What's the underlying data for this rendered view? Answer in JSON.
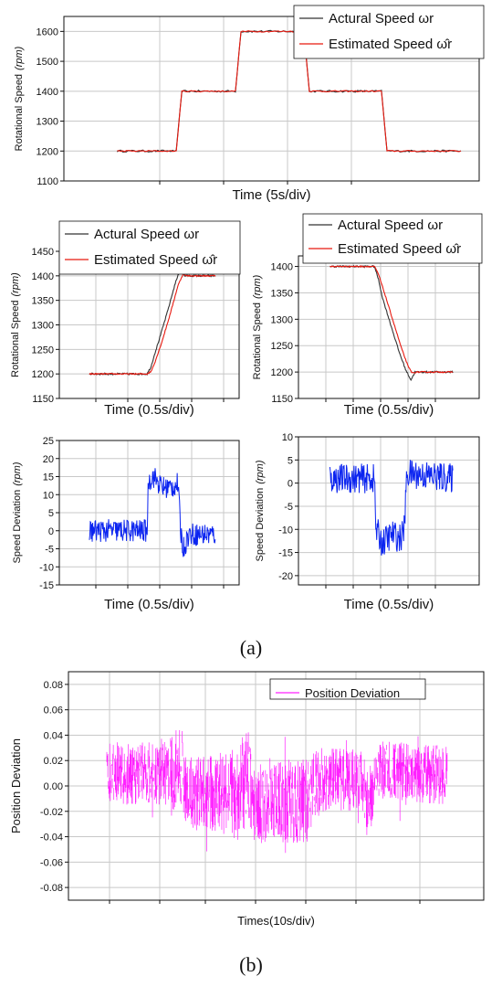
{
  "panel_labels": {
    "a": "(a)",
    "b": "(b)"
  },
  "chart_data": [
    {
      "id": "speed-full",
      "type": "line",
      "xlabel": "Time (5s/div)",
      "ylabel": "Rotational Speed",
      "ylabel_unit": "(rpm)",
      "ylim": [
        1100,
        1650
      ],
      "yticks": [
        1100,
        1200,
        1300,
        1400,
        1500,
        1600
      ],
      "xlim": [
        0,
        10
      ],
      "x_divisions": 8,
      "grid": true,
      "legend_position": "top-right",
      "series": [
        {
          "name": "Actural Speed ωr",
          "color": "#333333",
          "role": "actual",
          "x": [
            0.7,
            2.3,
            2.45,
            3.9,
            4.05,
            5.75,
            5.9,
            7.85,
            8.0,
            10.0
          ],
          "y": [
            1200,
            1200,
            1400,
            1400,
            1600,
            1600,
            1400,
            1400,
            1200,
            1200
          ]
        },
        {
          "name": "Estimated Speed ω̂r",
          "color": "#e8190f",
          "role": "estimated",
          "x": [
            0.7,
            2.3,
            2.45,
            3.9,
            4.05,
            5.75,
            5.9,
            7.85,
            8.0,
            10.0
          ],
          "y": [
            1200,
            1200,
            1400,
            1400,
            1600,
            1600,
            1400,
            1400,
            1200,
            1200
          ]
        }
      ]
    },
    {
      "id": "speed-rise",
      "type": "line",
      "xlabel": "Time (0.5s/div)",
      "ylabel": "Rotational Speed",
      "ylabel_unit": "(rpm)",
      "ylim": [
        1150,
        1450
      ],
      "yticks": [
        1150,
        1200,
        1250,
        1300,
        1350,
        1400,
        1450
      ],
      "xlim": [
        0,
        10
      ],
      "x_divisions": 8,
      "grid": true,
      "legend_position": "top",
      "series": [
        {
          "name": "Actural Speed ωr",
          "color": "#333333",
          "role": "actual",
          "x": [
            0.2,
            4.5,
            4.8,
            5.0,
            5.4,
            6.0,
            6.6,
            7.0,
            7.3,
            9.6
          ],
          "y": [
            1200,
            1200,
            1215,
            1235,
            1270,
            1325,
            1385,
            1415,
            1400,
            1400
          ]
        },
        {
          "name": "Estimated Speed ω̂r",
          "color": "#e8190f",
          "role": "estimated",
          "x": [
            0.2,
            4.5,
            4.8,
            5.1,
            5.6,
            6.2,
            6.8,
            7.2,
            7.4,
            9.6
          ],
          "y": [
            1200,
            1200,
            1205,
            1225,
            1265,
            1320,
            1380,
            1405,
            1400,
            1400
          ]
        }
      ]
    },
    {
      "id": "speed-fall",
      "type": "line",
      "xlabel": "Time (0.5s/div)",
      "ylabel": "Rotational Speed",
      "ylabel_unit": "(rpm)",
      "ylim": [
        1150,
        1420
      ],
      "yticks": [
        1150,
        1200,
        1250,
        1300,
        1350,
        1400
      ],
      "xlim": [
        0,
        10
      ],
      "x_divisions": 7,
      "grid": true,
      "legend_position": "top",
      "series": [
        {
          "name": "Actural Speed ωr",
          "color": "#333333",
          "role": "actual",
          "x": [
            0.3,
            3.6,
            3.9,
            4.2,
            4.8,
            5.4,
            5.9,
            6.3,
            6.6,
            9.4
          ],
          "y": [
            1400,
            1400,
            1375,
            1340,
            1290,
            1240,
            1205,
            1185,
            1200,
            1200
          ]
        },
        {
          "name": "Estimated Speed ω̂r",
          "color": "#e8190f",
          "role": "estimated",
          "x": [
            0.3,
            3.6,
            3.9,
            4.4,
            5.0,
            5.6,
            6.1,
            6.4,
            6.7,
            9.4
          ],
          "y": [
            1400,
            1400,
            1385,
            1345,
            1295,
            1245,
            1210,
            1198,
            1200,
            1200
          ]
        }
      ]
    },
    {
      "id": "deviation-rise",
      "type": "line",
      "xlabel": "Time (0.5s/div)",
      "ylabel": "Speed Deviation",
      "ylabel_unit": "(rpm)",
      "ylim": [
        -15,
        25
      ],
      "yticks": [
        -15,
        -10,
        -5,
        0,
        5,
        10,
        15,
        20,
        25
      ],
      "xlim": [
        0,
        10
      ],
      "x_divisions": 8,
      "grid": true,
      "series": [
        {
          "name": "",
          "color": "#0b24f0",
          "x": [
            0.2,
            4.5,
            4.6,
            5.0,
            5.6,
            6.3,
            6.8,
            7.0,
            7.2,
            7.6,
            9.6
          ],
          "y": [
            0,
            0,
            14,
            15,
            12,
            12,
            13,
            0,
            -5,
            -1,
            -1
          ]
        }
      ]
    },
    {
      "id": "deviation-fall",
      "type": "line",
      "xlabel": "Time (0.5s/div)",
      "ylabel": "Speed Deviation",
      "ylabel_unit": "(rpm)",
      "ylim": [
        -22,
        10
      ],
      "yticks": [
        -20,
        -15,
        -10,
        -5,
        0,
        5,
        10
      ],
      "xlim": [
        0,
        10
      ],
      "x_divisions": 7,
      "grid": true,
      "series": [
        {
          "name": "",
          "color": "#0b24f0",
          "x": [
            0.3,
            3.6,
            3.7,
            4.2,
            4.9,
            5.5,
            5.8,
            6.0,
            6.5,
            9.4
          ],
          "y": [
            1,
            1,
            -10,
            -13,
            -11,
            -12,
            -10,
            2,
            2,
            1
          ]
        }
      ]
    },
    {
      "id": "position-deviation",
      "type": "line",
      "xlabel": "Times(10s/div)",
      "ylabel": "Position Deviation",
      "ylim": [
        -0.09,
        0.09
      ],
      "yticks": [
        -0.08,
        -0.06,
        -0.04,
        -0.02,
        0.0,
        0.02,
        0.04,
        0.06,
        0.08
      ],
      "ytick_labels": [
        "-0.08",
        "-0.06",
        "-0.04",
        "-0.02",
        "0.00",
        "0.02",
        "0.04",
        "0.06",
        "0.08"
      ],
      "xlim": [
        0,
        10
      ],
      "x_divisions": 8,
      "grid": true,
      "legend_position": "top-right",
      "series": [
        {
          "name": "Position Deviation",
          "color": "#ff22ff",
          "envelope_x": [
            0.0,
            1.5,
            2.2,
            2.4,
            3.5,
            4.2,
            4.3,
            5.7,
            5.9,
            6.3,
            7.5,
            7.7,
            7.9,
            10.0
          ],
          "envelope_upper": [
            0.035,
            0.035,
            0.05,
            0.025,
            0.025,
            0.045,
            0.025,
            0.02,
            0.025,
            0.03,
            0.03,
            0.005,
            0.035,
            0.035
          ],
          "envelope_lower": [
            -0.015,
            -0.015,
            -0.02,
            -0.035,
            -0.04,
            -0.045,
            -0.045,
            -0.045,
            -0.05,
            -0.02,
            -0.02,
            -0.05,
            -0.01,
            -0.015
          ]
        }
      ]
    }
  ]
}
